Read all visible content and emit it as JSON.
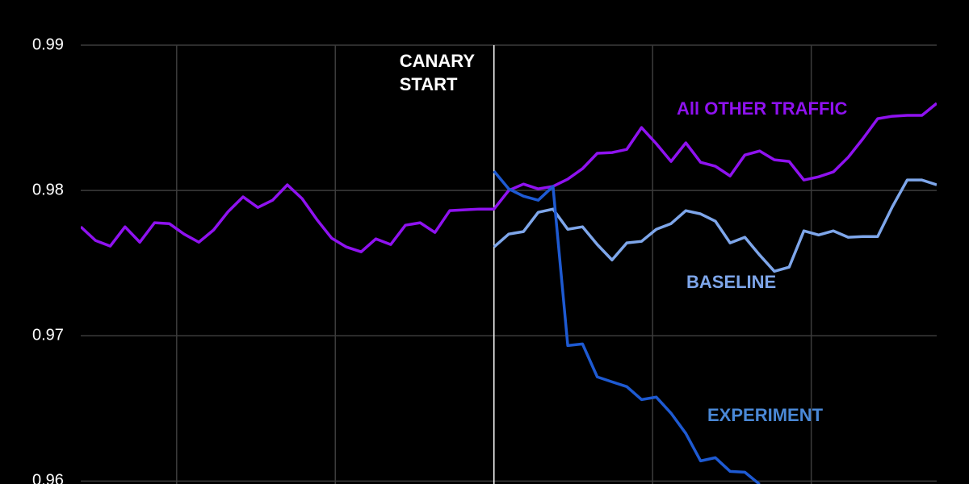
{
  "chart_data": {
    "type": "line",
    "x": [
      0,
      1,
      2,
      3,
      4,
      5,
      6,
      7,
      8,
      9,
      10,
      11,
      12,
      13,
      14,
      15,
      16,
      17,
      18,
      19,
      20,
      21,
      22,
      23,
      24,
      25,
      26,
      27,
      28,
      29,
      30,
      31,
      32,
      33,
      34,
      35,
      36,
      37,
      38,
      39,
      40,
      41,
      42,
      43,
      44,
      45,
      46,
      47,
      48,
      49,
      50,
      51,
      52,
      53,
      54,
      55,
      56,
      57,
      58
    ],
    "xlim": [
      0,
      58
    ],
    "xticks": [
      6.5,
      17.25,
      28,
      38.75,
      49.5
    ],
    "ylim": [
      0.9598,
      0.99
    ],
    "yticks": [
      0.96,
      0.97,
      0.98,
      0.99
    ],
    "grid": true,
    "event": {
      "x": 28,
      "label": "CANARY START"
    },
    "series": [
      {
        "name": "All OTHER TRAFFIC",
        "color": "#8f12f0",
        "values": [
          0.9775,
          0.97656,
          0.97617,
          0.9775,
          0.97644,
          0.97778,
          0.97772,
          0.977,
          0.97644,
          0.97728,
          0.97856,
          0.97956,
          0.97883,
          0.97933,
          0.98039,
          0.97944,
          0.978,
          0.97672,
          0.97611,
          0.97578,
          0.97667,
          0.97628,
          0.97761,
          0.97778,
          0.97711,
          0.97861,
          0.97867,
          0.97872,
          0.97872,
          0.98,
          0.98044,
          0.98011,
          0.98028,
          0.98078,
          0.9815,
          0.98256,
          0.98261,
          0.98283,
          0.98433,
          0.98322,
          0.982,
          0.98328,
          0.98194,
          0.98167,
          0.981,
          0.98244,
          0.98272,
          0.98211,
          0.982,
          0.98072,
          0.98094,
          0.98128,
          0.98228,
          0.98356,
          0.98494,
          0.98511,
          0.98517,
          0.98517,
          0.986
        ]
      },
      {
        "name": "BASELINE",
        "color": "#7ea6ea",
        "values": [
          null,
          null,
          null,
          null,
          null,
          null,
          null,
          null,
          null,
          null,
          null,
          null,
          null,
          null,
          null,
          null,
          null,
          null,
          null,
          null,
          null,
          null,
          null,
          null,
          null,
          null,
          null,
          null,
          0.97611,
          0.977,
          0.97717,
          0.9785,
          0.97872,
          0.97733,
          0.9775,
          0.97628,
          0.97522,
          0.97639,
          0.9765,
          0.97733,
          0.97772,
          0.97861,
          0.97839,
          0.97789,
          0.97639,
          0.97678,
          0.97556,
          0.97444,
          0.97472,
          0.97722,
          0.97694,
          0.97722,
          0.97678,
          0.97683,
          0.97683,
          0.97889,
          0.98072,
          0.98072,
          0.98039
        ]
      },
      {
        "name": "EXPERIMENT",
        "color": "#1e5ad2",
        "label_color": "#4a88d6",
        "values": [
          null,
          null,
          null,
          null,
          null,
          null,
          null,
          null,
          null,
          null,
          null,
          null,
          null,
          null,
          null,
          null,
          null,
          null,
          null,
          null,
          null,
          null,
          null,
          null,
          null,
          null,
          null,
          null,
          0.98133,
          0.98011,
          0.97961,
          0.97933,
          0.98028,
          0.96933,
          0.96944,
          0.96717,
          0.96683,
          0.9665,
          0.96561,
          0.96578,
          0.96467,
          0.96328,
          0.96139,
          0.96161,
          0.96067,
          0.96061,
          0.95978,
          null,
          null,
          null,
          null,
          null,
          null,
          null,
          null,
          null,
          null,
          null,
          null
        ]
      }
    ]
  }
}
